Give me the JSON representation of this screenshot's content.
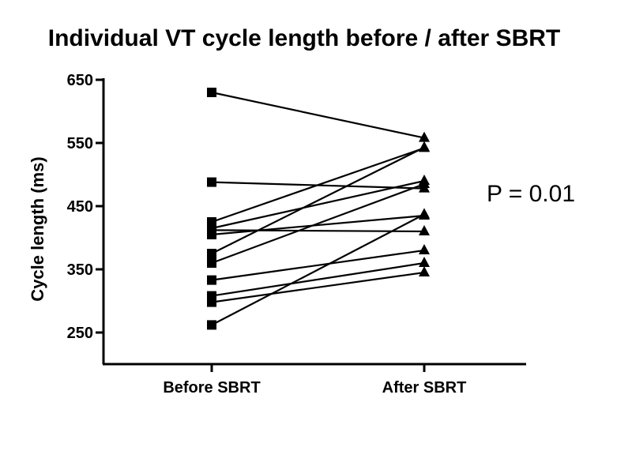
{
  "chart_data": {
    "type": "line",
    "title": "Individual VT cycle length before / after SBRT",
    "xlabel": "",
    "ylabel": "Cycle length (ms)",
    "categories": [
      "Before SBRT",
      "After SBRT"
    ],
    "ylim": [
      200,
      650
    ],
    "yticks": [
      250,
      350,
      450,
      550,
      650
    ],
    "yticks_labels": [
      "250",
      "350",
      "450",
      "550",
      "650"
    ],
    "annotation": "P = 0.01",
    "legend": "none",
    "grid": false,
    "markers": {
      "before": "square",
      "after": "triangle"
    },
    "line_color": "#000000",
    "pairs": [
      {
        "before": 630,
        "after": 558
      },
      {
        "before": 488,
        "after": 478
      },
      {
        "before": 425,
        "after": 542
      },
      {
        "before": 415,
        "after": 490
      },
      {
        "before": 412,
        "after": 410
      },
      {
        "before": 405,
        "after": 435
      },
      {
        "before": 375,
        "after": 543
      },
      {
        "before": 360,
        "after": 485
      },
      {
        "before": 333,
        "after": 380
      },
      {
        "before": 308,
        "after": 360
      },
      {
        "before": 298,
        "after": 345
      },
      {
        "before": 262,
        "after": 437
      }
    ]
  }
}
